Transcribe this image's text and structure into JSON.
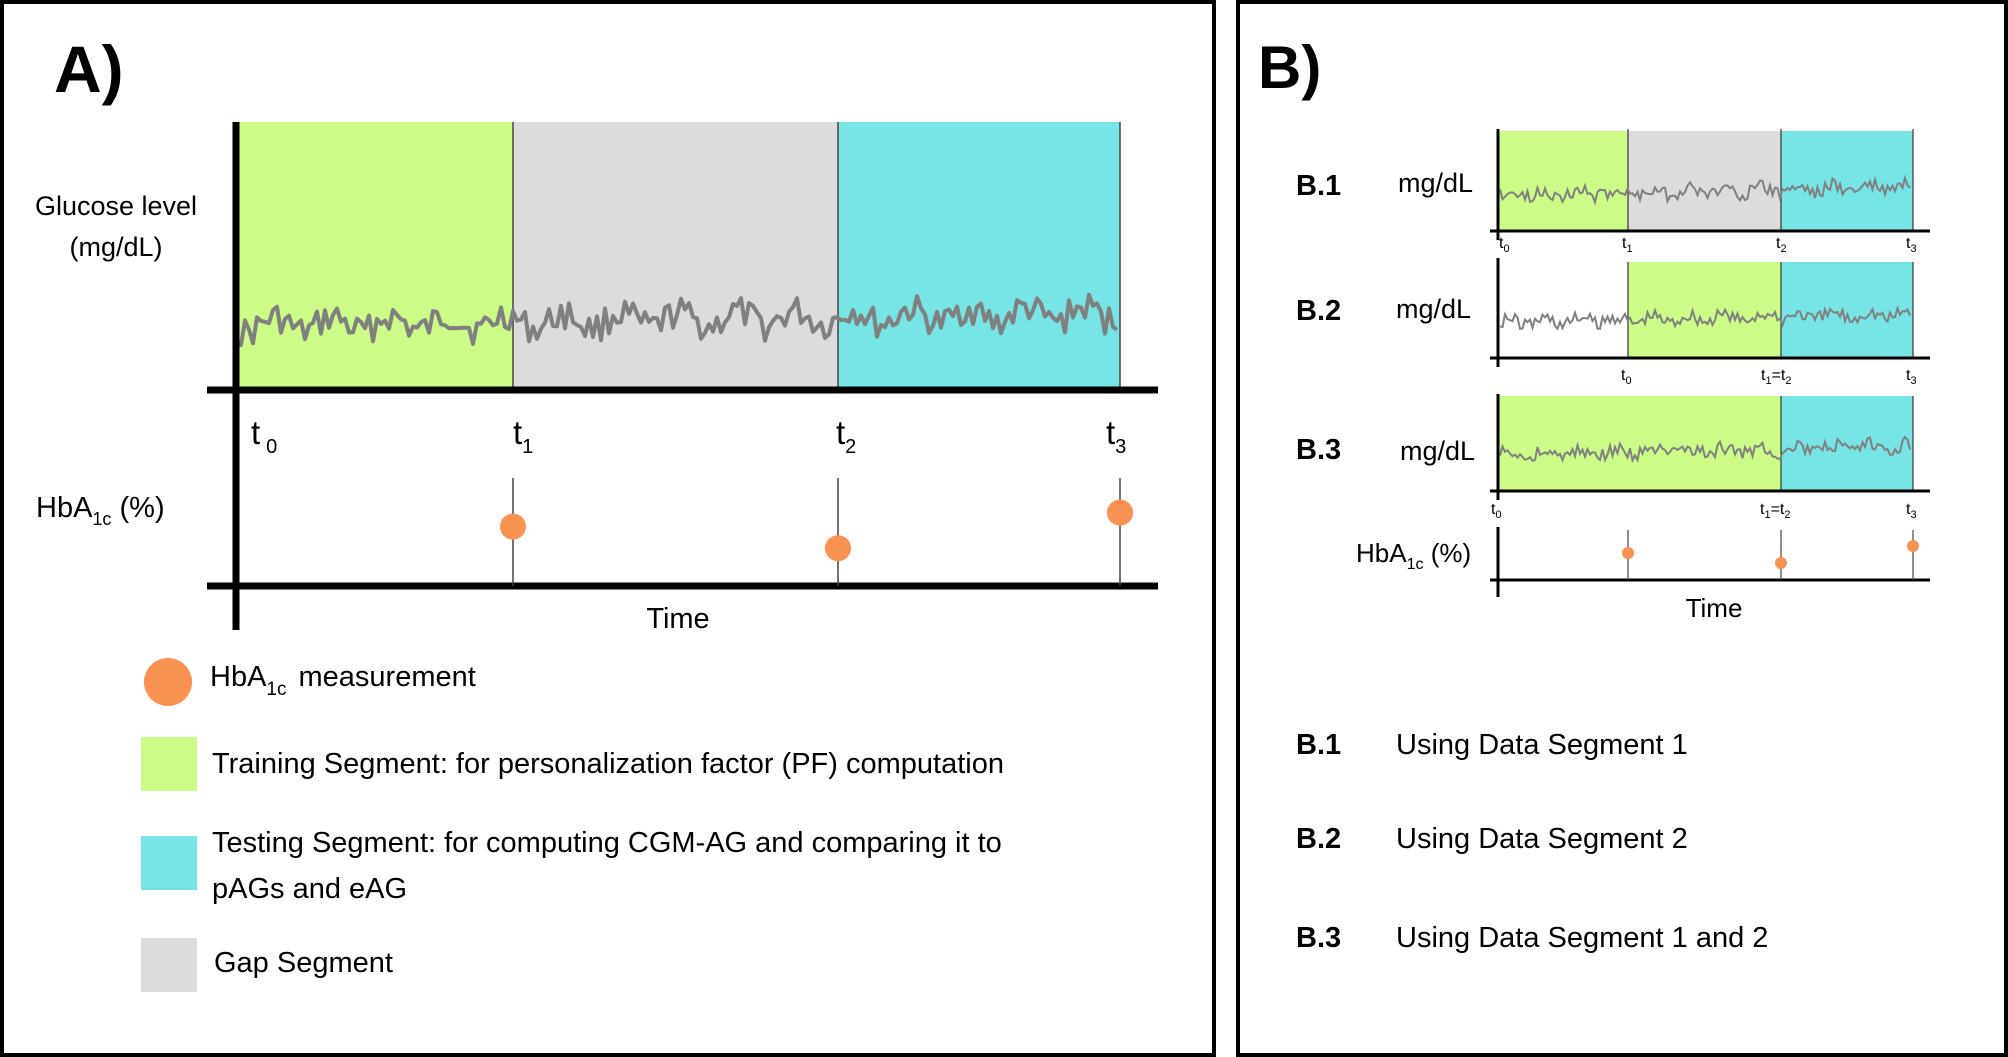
{
  "colors": {
    "training": "#ccfc87",
    "gap": "#dcdcdc",
    "testing": "#77e4e6",
    "hba1c_marker": "#f79250",
    "glucose_line": "#808080",
    "axis": "#000000"
  },
  "panel_a": {
    "label": "A)",
    "y_label_line1": "Glucose level",
    "y_label_line2": "(mg/dL)",
    "time_ticks": [
      {
        "base": "t",
        "sub": "0"
      },
      {
        "base": "t",
        "sub": "1"
      },
      {
        "base": "t",
        "sub": "2"
      },
      {
        "base": "t",
        "sub": "3"
      }
    ],
    "hba1c_label": {
      "base": "HbA",
      "sub": "1c",
      "suffix": " (%)"
    },
    "x_label": "Time",
    "hba1c_values_relative": [
      0.55,
      0.35,
      0.68
    ]
  },
  "legend": [
    {
      "key": "hba1c",
      "base": "HbA",
      "sub": "1c",
      "suffix": "measurement"
    },
    {
      "key": "training",
      "text": "Training Segment: for personalization factor (PF) computation"
    },
    {
      "key": "testing",
      "line1": "Testing Segment: for computing CGM-AG and comparing it to",
      "line2": "pAGs and eAG"
    },
    {
      "key": "gap",
      "text": "Gap Segment"
    }
  ],
  "panel_b": {
    "label": "B)",
    "rows": [
      {
        "id": "B.1",
        "unit": "mg/dL",
        "segments": [
          "training",
          "gap",
          "testing"
        ],
        "ticks": [
          {
            "base": "t",
            "sub": "0"
          },
          {
            "base": "t",
            "sub": "1"
          },
          {
            "base": "t",
            "sub": "2"
          },
          {
            "base": "t",
            "sub": "3"
          }
        ]
      },
      {
        "id": "B.2",
        "unit": "mg/dL",
        "segments": [
          "none",
          "training",
          "testing"
        ],
        "ticks": [
          {
            "base": "t",
            "sub": "0"
          },
          {
            "base": "t",
            "sub": "1",
            "extra": "=t",
            "extra_sub": "2"
          },
          {
            "base": "t",
            "sub": "3"
          }
        ]
      },
      {
        "id": "B.3",
        "unit": "mg/dL",
        "segments": [
          "training",
          "training",
          "testing"
        ],
        "ticks": [
          {
            "base": "t",
            "sub": "0"
          },
          {
            "base": "t",
            "sub": "1",
            "extra": "=t",
            "extra_sub": "2"
          },
          {
            "base": "t",
            "sub": "3"
          }
        ]
      }
    ],
    "hba1c_label": {
      "base": "HbA",
      "sub": "1c",
      "suffix": " (%)"
    },
    "x_label": "Time",
    "descriptions": [
      {
        "id": "B.1",
        "text": "Using Data Segment 1"
      },
      {
        "id": "B.2",
        "text": "Using Data Segment 2"
      },
      {
        "id": "B.3",
        "text": "Using Data Segment 1 and 2"
      }
    ]
  }
}
